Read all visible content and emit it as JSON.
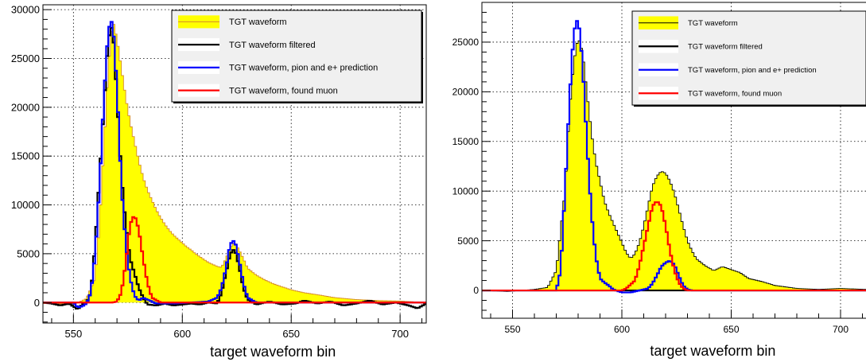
{
  "chart_data": [
    {
      "type": "line",
      "xlabel": "target waveform bin",
      "ylabel": "",
      "xlim": [
        536,
        712
      ],
      "ylim": [
        -2100,
        30500
      ],
      "xticks": [
        550,
        600,
        650,
        700
      ],
      "yticks": [
        0,
        5000,
        10000,
        15000,
        20000,
        25000,
        30000
      ],
      "grid": true,
      "legend_position": "top-right",
      "series": [
        {
          "name": "TGT waveform",
          "render": "fill",
          "color": "#ffff00",
          "edge_color": "#d58a2a",
          "points": [
            [
              536,
              -100
            ],
            [
              550,
              -200
            ],
            [
              556,
              400
            ],
            [
              560,
              2500
            ],
            [
              562,
              8000
            ],
            [
              564,
              16000
            ],
            [
              566,
              24000
            ],
            [
              568,
              29000
            ],
            [
              570,
              27000
            ],
            [
              572,
              24000
            ],
            [
              574,
              21000
            ],
            [
              576,
              18500
            ],
            [
              578,
              16500
            ],
            [
              580,
              14500
            ],
            [
              582,
              12800
            ],
            [
              584,
              11500
            ],
            [
              586,
              10500
            ],
            [
              588,
              9500
            ],
            [
              590,
              8700
            ],
            [
              592,
              8000
            ],
            [
              594,
              7400
            ],
            [
              596,
              6900
            ],
            [
              598,
              6500
            ],
            [
              600,
              6100
            ],
            [
              602,
              5700
            ],
            [
              604,
              5400
            ],
            [
              606,
              5000
            ],
            [
              608,
              4700
            ],
            [
              610,
              4400
            ],
            [
              612,
              4100
            ],
            [
              614,
              3900
            ],
            [
              616,
              3700
            ],
            [
              618,
              3600
            ],
            [
              620,
              4500
            ],
            [
              622,
              5600
            ],
            [
              624,
              6200
            ],
            [
              626,
              5400
            ],
            [
              628,
              4500
            ],
            [
              630,
              3500
            ],
            [
              634,
              2800
            ],
            [
              638,
              2300
            ],
            [
              642,
              1900
            ],
            [
              646,
              1600
            ],
            [
              650,
              1300
            ],
            [
              656,
              1000
            ],
            [
              662,
              800
            ],
            [
              670,
              500
            ],
            [
              680,
              300
            ],
            [
              690,
              200
            ],
            [
              700,
              150
            ],
            [
              712,
              0
            ]
          ]
        },
        {
          "name": "TGT waveform filtered",
          "render": "step",
          "color": "#000000",
          "points": [
            [
              536,
              0
            ],
            [
              540,
              -100
            ],
            [
              544,
              -300
            ],
            [
              548,
              -100
            ],
            [
              552,
              -700
            ],
            [
              554,
              -200
            ],
            [
              556,
              0
            ],
            [
              558,
              1000
            ],
            [
              560,
              6000
            ],
            [
              562,
              13000
            ],
            [
              564,
              20000
            ],
            [
              566,
              27000
            ],
            [
              568,
              28500
            ],
            [
              570,
              21000
            ],
            [
              572,
              13000
            ],
            [
              574,
              8000
            ],
            [
              576,
              4500
            ],
            [
              578,
              3000
            ],
            [
              580,
              1500
            ],
            [
              582,
              500
            ],
            [
              584,
              -200
            ],
            [
              588,
              -300
            ],
            [
              592,
              -100
            ],
            [
              596,
              -300
            ],
            [
              600,
              -200
            ],
            [
              604,
              -100
            ],
            [
              608,
              -200
            ],
            [
              612,
              0
            ],
            [
              616,
              -100
            ],
            [
              618,
              1000
            ],
            [
              620,
              3000
            ],
            [
              622,
              5000
            ],
            [
              624,
              5500
            ],
            [
              626,
              3800
            ],
            [
              628,
              1500
            ],
            [
              630,
              300
            ],
            [
              634,
              -200
            ],
            [
              640,
              100
            ],
            [
              646,
              -200
            ],
            [
              652,
              -100
            ],
            [
              656,
              200
            ],
            [
              662,
              -100
            ],
            [
              668,
              100
            ],
            [
              674,
              -300
            ],
            [
              680,
              -100
            ],
            [
              686,
              200
            ],
            [
              692,
              -200
            ],
            [
              698,
              0
            ],
            [
              704,
              -300
            ],
            [
              708,
              -600
            ],
            [
              712,
              -100
            ]
          ]
        },
        {
          "name": "TGT waveform, pion and e+ prediction",
          "render": "step",
          "color": "#0000ff",
          "points": [
            [
              536,
              0
            ],
            [
              550,
              0
            ],
            [
              552,
              -500
            ],
            [
              554,
              -400
            ],
            [
              556,
              -100
            ],
            [
              558,
              1000
            ],
            [
              560,
              5000
            ],
            [
              562,
              12000
            ],
            [
              564,
              21000
            ],
            [
              566,
              28000
            ],
            [
              568,
              29000
            ],
            [
              570,
              22000
            ],
            [
              572,
              12000
            ],
            [
              574,
              6000
            ],
            [
              576,
              2500
            ],
            [
              578,
              700
            ],
            [
              580,
              200
            ],
            [
              582,
              500
            ],
            [
              584,
              300
            ],
            [
              588,
              -100
            ],
            [
              592,
              -100
            ],
            [
              596,
              -100
            ],
            [
              604,
              0
            ],
            [
              612,
              100
            ],
            [
              616,
              500
            ],
            [
              618,
              1500
            ],
            [
              620,
              3500
            ],
            [
              622,
              6000
            ],
            [
              624,
              6400
            ],
            [
              626,
              4500
            ],
            [
              628,
              2000
            ],
            [
              630,
              500
            ],
            [
              634,
              0
            ],
            [
              640,
              0
            ],
            [
              712,
              0
            ]
          ]
        },
        {
          "name": "TGT waveform, found muon",
          "render": "step",
          "color": "#ff0000",
          "points": [
            [
              536,
              0
            ],
            [
              568,
              0
            ],
            [
              570,
              100
            ],
            [
              572,
              1000
            ],
            [
              574,
              4000
            ],
            [
              576,
              8000
            ],
            [
              578,
              9000
            ],
            [
              580,
              7500
            ],
            [
              582,
              4500
            ],
            [
              584,
              2000
            ],
            [
              586,
              500
            ],
            [
              590,
              0
            ],
            [
              712,
              0
            ]
          ]
        }
      ]
    },
    {
      "type": "line",
      "xlabel": "target waveform bin",
      "ylabel": "",
      "xlim": [
        536,
        712
      ],
      "ylim": [
        -2800,
        29000
      ],
      "xticks": [
        550,
        600,
        650,
        700
      ],
      "yticks": [
        0,
        5000,
        10000,
        15000,
        20000,
        25000
      ],
      "grid": true,
      "legend_position": "top-right",
      "series": [
        {
          "name": "TGT waveform",
          "render": "fill",
          "color": "#ffff00",
          "edge_color": "#000000",
          "points": [
            [
              536,
              0
            ],
            [
              548,
              -100
            ],
            [
              560,
              100
            ],
            [
              566,
              300
            ],
            [
              570,
              2000
            ],
            [
              574,
              10000
            ],
            [
              576,
              18000
            ],
            [
              578,
              23000
            ],
            [
              580,
              25500
            ],
            [
              582,
              24000
            ],
            [
              584,
              20000
            ],
            [
              586,
              16000
            ],
            [
              588,
              13000
            ],
            [
              590,
              11000
            ],
            [
              592,
              9000
            ],
            [
              594,
              7800
            ],
            [
              596,
              6800
            ],
            [
              598,
              5800
            ],
            [
              600,
              4800
            ],
            [
              602,
              3800
            ],
            [
              604,
              3200
            ],
            [
              606,
              3700
            ],
            [
              608,
              4800
            ],
            [
              610,
              6500
            ],
            [
              612,
              8500
            ],
            [
              614,
              10500
            ],
            [
              616,
              11500
            ],
            [
              618,
              12000
            ],
            [
              620,
              11800
            ],
            [
              622,
              11000
            ],
            [
              624,
              9800
            ],
            [
              626,
              8200
            ],
            [
              628,
              6500
            ],
            [
              630,
              5000
            ],
            [
              632,
              4000
            ],
            [
              634,
              3200
            ],
            [
              638,
              2500
            ],
            [
              642,
              2000
            ],
            [
              646,
              2400
            ],
            [
              650,
              2100
            ],
            [
              654,
              1800
            ],
            [
              658,
              1200
            ],
            [
              664,
              900
            ],
            [
              670,
              500
            ],
            [
              680,
              200
            ],
            [
              690,
              100
            ],
            [
              700,
              200
            ],
            [
              712,
              100
            ]
          ]
        },
        {
          "name": "TGT waveform filtered",
          "render": "step",
          "color": "#000000",
          "points": [
            [
              536,
              0
            ],
            [
              712,
              0
            ]
          ]
        },
        {
          "name": "TGT waveform, pion and e+ prediction",
          "render": "step",
          "color": "#0000ff",
          "points": [
            [
              536,
              0
            ],
            [
              570,
              0
            ],
            [
              572,
              2000
            ],
            [
              574,
              10000
            ],
            [
              576,
              19000
            ],
            [
              578,
              26000
            ],
            [
              580,
              27500
            ],
            [
              582,
              23000
            ],
            [
              584,
              15000
            ],
            [
              586,
              8000
            ],
            [
              588,
              3500
            ],
            [
              590,
              1200
            ],
            [
              592,
              800
            ],
            [
              594,
              500
            ],
            [
              596,
              100
            ],
            [
              600,
              -200
            ],
            [
              604,
              -200
            ],
            [
              606,
              -100
            ],
            [
              608,
              0
            ],
            [
              612,
              200
            ],
            [
              614,
              700
            ],
            [
              616,
              1500
            ],
            [
              618,
              2400
            ],
            [
              620,
              2800
            ],
            [
              622,
              3000
            ],
            [
              624,
              2600
            ],
            [
              626,
              1500
            ],
            [
              628,
              500
            ],
            [
              630,
              100
            ],
            [
              632,
              0
            ],
            [
              712,
              0
            ]
          ]
        },
        {
          "name": "TGT waveform, found muon",
          "render": "step",
          "color": "#ff0000",
          "points": [
            [
              536,
              0
            ],
            [
              600,
              0
            ],
            [
              602,
              200
            ],
            [
              606,
              1000
            ],
            [
              608,
              2500
            ],
            [
              610,
              4500
            ],
            [
              612,
              6500
            ],
            [
              614,
              8500
            ],
            [
              616,
              9000
            ],
            [
              618,
              8500
            ],
            [
              620,
              6500
            ],
            [
              622,
              4000
            ],
            [
              624,
              2000
            ],
            [
              626,
              800
            ],
            [
              628,
              200
            ],
            [
              630,
              0
            ],
            [
              712,
              0
            ]
          ]
        }
      ]
    }
  ]
}
